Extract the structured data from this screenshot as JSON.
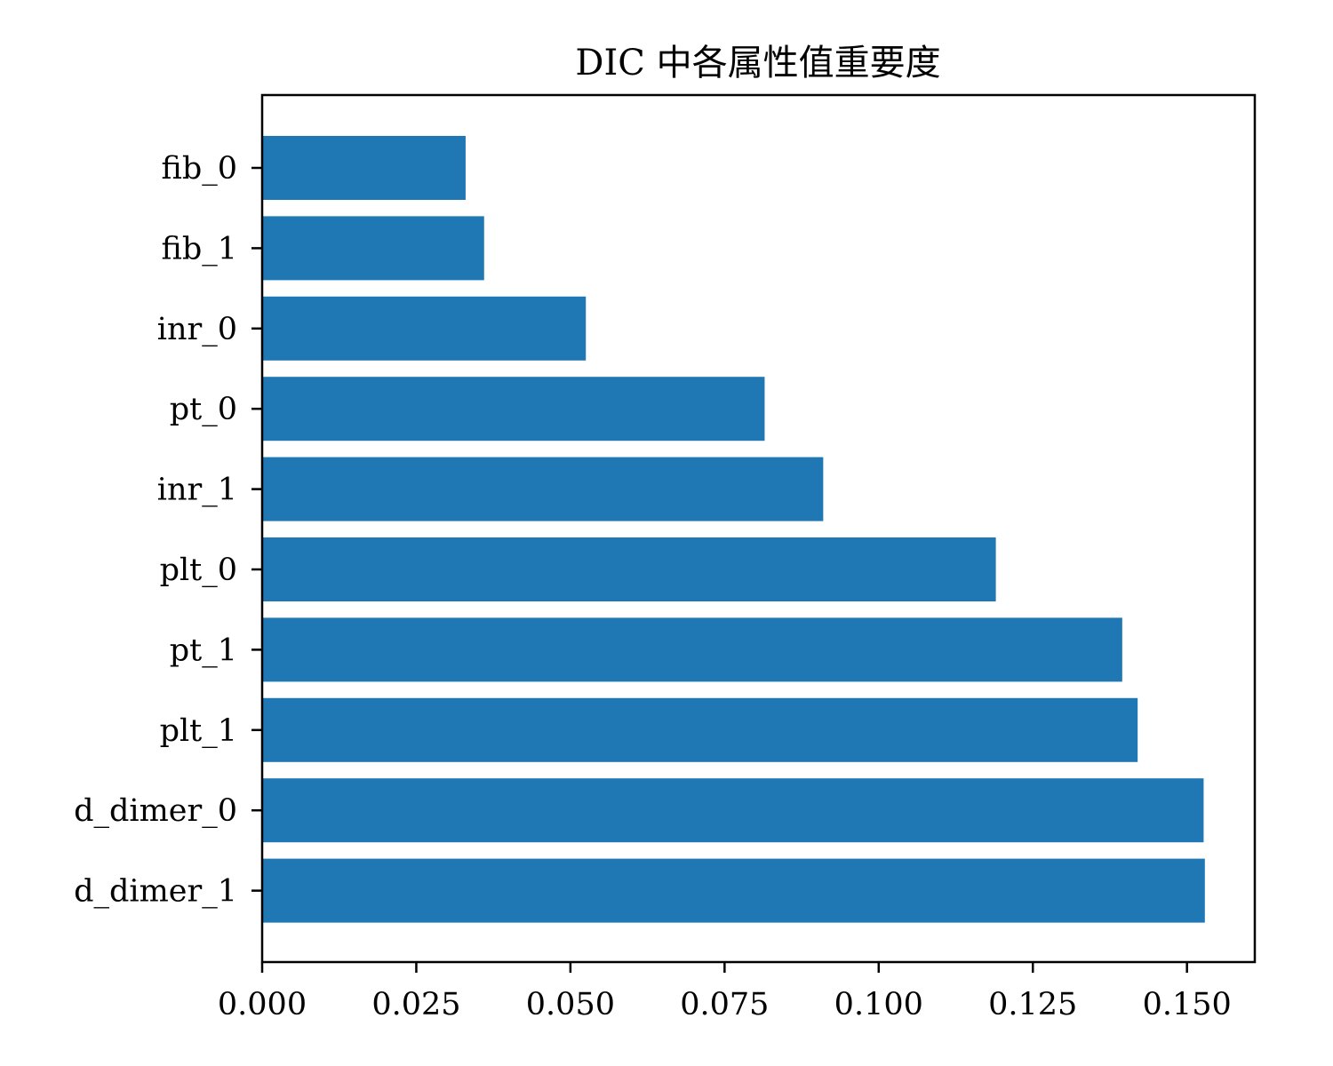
{
  "chart_data": {
    "type": "bar",
    "orientation": "horizontal",
    "title": "DIC 中各属性值重要度",
    "xlabel": "",
    "ylabel": "",
    "categories": [
      "fib_0",
      "fib_1",
      "inr_0",
      "pt_0",
      "inr_1",
      "plt_0",
      "pt_1",
      "plt_1",
      "d_dimer_0",
      "d_dimer_1"
    ],
    "values": [
      0.033,
      0.036,
      0.0525,
      0.0815,
      0.091,
      0.119,
      0.1395,
      0.142,
      0.1527,
      0.1529
    ],
    "xlim": [
      0,
      0.161
    ],
    "xticks": [
      "0.000",
      "0.025",
      "0.050",
      "0.075",
      "0.100",
      "0.125",
      "0.150"
    ],
    "xtick_values": [
      0,
      0.025,
      0.05,
      0.075,
      0.1,
      0.125,
      0.15
    ],
    "grid": false,
    "legend": "none",
    "bar_color": "#1f77b4"
  }
}
